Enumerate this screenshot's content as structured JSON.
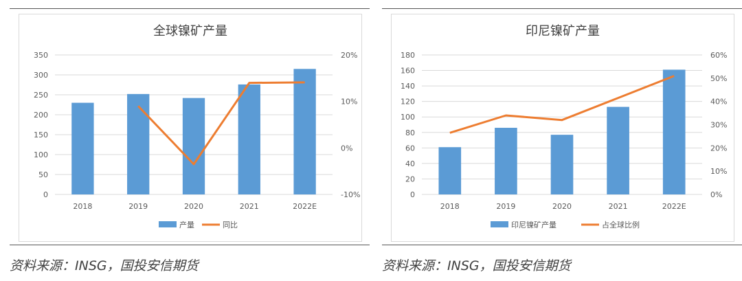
{
  "chart_data": [
    {
      "type": "bar",
      "title": "全球镍矿产量",
      "categories": [
        "2018",
        "2019",
        "2020",
        "2021",
        "2022E"
      ],
      "bar_series": {
        "name": "产量",
        "values": [
          230,
          252,
          242,
          276,
          315
        ],
        "color": "#5b9bd5"
      },
      "line_series": {
        "name": "同比",
        "values": [
          null,
          9,
          -3.5,
          14,
          14.1
        ],
        "color": "#ed7d31"
      },
      "y_left": {
        "min": 0,
        "max": 350,
        "step": 50,
        "ticks": [
          "0",
          "50",
          "100",
          "150",
          "200",
          "250",
          "300",
          "350"
        ]
      },
      "y_right": {
        "min": -10,
        "max": 20,
        "step": 10,
        "ticks": [
          "-10%",
          "0%",
          "10%",
          "20%"
        ]
      },
      "gridlines": true,
      "legend": "bottom"
    },
    {
      "type": "bar",
      "title": "印尼镍矿产量",
      "categories": [
        "2018",
        "2019",
        "2020",
        "2021",
        "2022E"
      ],
      "bar_series": {
        "name": "印尼镍矿产量",
        "values": [
          61,
          86,
          77,
          113,
          161
        ],
        "color": "#5b9bd5"
      },
      "line_series": {
        "name": "占全球比例",
        "values": [
          26.5,
          34,
          32,
          41.5,
          51
        ],
        "color": "#ed7d31"
      },
      "y_left": {
        "min": 0,
        "max": 180,
        "step": 20,
        "ticks": [
          "0",
          "20",
          "40",
          "60",
          "80",
          "100",
          "120",
          "140",
          "160",
          "180"
        ]
      },
      "y_right": {
        "min": 0,
        "max": 60,
        "step": 10,
        "ticks": [
          "0%",
          "10%",
          "20%",
          "30%",
          "40%",
          "50%",
          "60%"
        ]
      },
      "gridlines": true,
      "legend": "bottom"
    }
  ],
  "sources": [
    "资料来源：INSG，国投安信期货",
    "资料来源：INSG，国投安信期货"
  ]
}
